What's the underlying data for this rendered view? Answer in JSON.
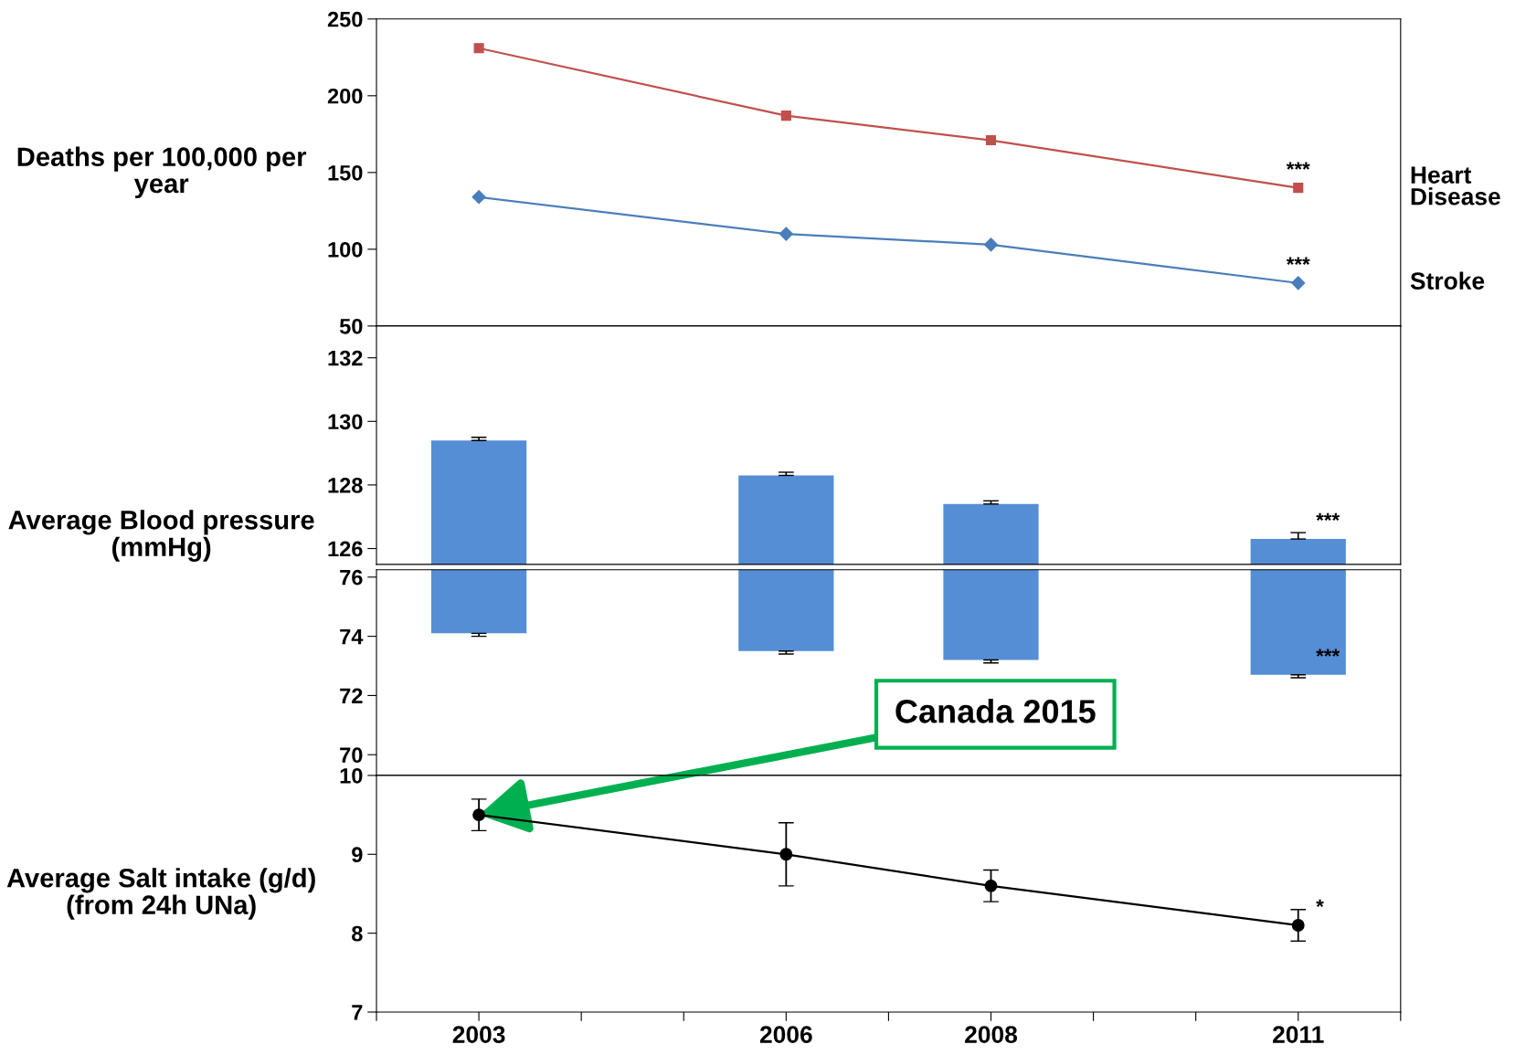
{
  "chart_data": [
    {
      "type": "line",
      "ylabel": "Deaths per 100,000 per year",
      "x": [
        2003,
        2006,
        2008,
        2011
      ],
      "xlim": [
        2002,
        2012
      ],
      "ylim": [
        50,
        250
      ],
      "yticks": [
        50,
        100,
        150,
        200,
        250
      ],
      "tick_labels": "y",
      "series": [
        {
          "name": "Heart Disease",
          "color": "#c0504d",
          "marker": "square",
          "values": [
            231,
            187,
            171,
            140
          ]
        },
        {
          "name": "Stroke",
          "color": "#4a7ebb",
          "marker": "diamond",
          "values": [
            134,
            110,
            103,
            78
          ]
        }
      ],
      "annotations": [
        "***",
        "***"
      ]
    },
    {
      "type": "bar",
      "ylabel": "Average Blood pressure (mmHg)",
      "x": [
        2003,
        2006,
        2008,
        2011
      ],
      "xlim": [
        2002,
        2012
      ],
      "ylim": [
        125.5,
        133
      ],
      "yticks": [
        126,
        128,
        130,
        132
      ],
      "tick_labels": "y",
      "series": [
        {
          "color": "#558ed5",
          "base": [
            74.1,
            73.5,
            73.2,
            72.7
          ],
          "values": [
            55.3,
            54.8,
            54.2,
            53.6
          ],
          "errors": [
            [
              129.4,
              129.5
            ],
            [
              128.3,
              128.4
            ],
            [
              127.4,
              127.5
            ],
            [
              126.3,
              126.5
            ]
          ]
        }
      ],
      "annotations": [
        "***"
      ]
    },
    {
      "type": "bar",
      "x": [
        2003,
        2006,
        2008,
        2011
      ],
      "xlim": [
        2002,
        2012
      ],
      "ylim": [
        69.3,
        76.25
      ],
      "yticks": [
        70,
        72,
        74,
        76
      ],
      "tick_labels": "y",
      "series": [
        {
          "color": "#558ed5",
          "base": [
            129.4,
            128.3,
            127.4,
            126.3
          ],
          "values": [
            -55.3,
            -54.8,
            -54.2,
            -53.6
          ],
          "errors": [
            [
              74.0,
              74.1
            ],
            [
              73.4,
              73.5
            ],
            [
              73.1,
              73.2
            ],
            [
              72.6,
              72.7
            ]
          ]
        }
      ],
      "annotations": [
        "***"
      ]
    },
    {
      "type": "line",
      "ylabel": "Average Salt intake (g/d) (from 24h UNa)",
      "x": [
        2003,
        2006,
        2008,
        2011
      ],
      "xlim": [
        2002,
        2012
      ],
      "ylim": [
        7,
        10
      ],
      "yticks": [
        7,
        8,
        9,
        10
      ],
      "xticks": [
        {
          "value": 2002,
          "label": null
        },
        2003,
        {
          "value": 2004,
          "label": null
        },
        {
          "value": 2005,
          "label": null
        },
        2006,
        {
          "value": 2007,
          "label": null
        },
        2008,
        {
          "value": 2009,
          "label": null
        },
        {
          "value": 2010,
          "label": null
        },
        2011,
        {
          "value": 2012,
          "label": null
        }
      ],
      "series": [
        {
          "color": "#000000",
          "marker": "circle",
          "values": [
            9.5,
            9.0,
            8.6,
            8.1
          ],
          "errors": [
            0.2,
            0.4,
            0.2,
            0.2
          ]
        }
      ],
      "annotations": [
        "*",
        {
          "text": "Canada 2015",
          "x": 2003,
          "y": 9.5
        }
      ]
    }
  ]
}
